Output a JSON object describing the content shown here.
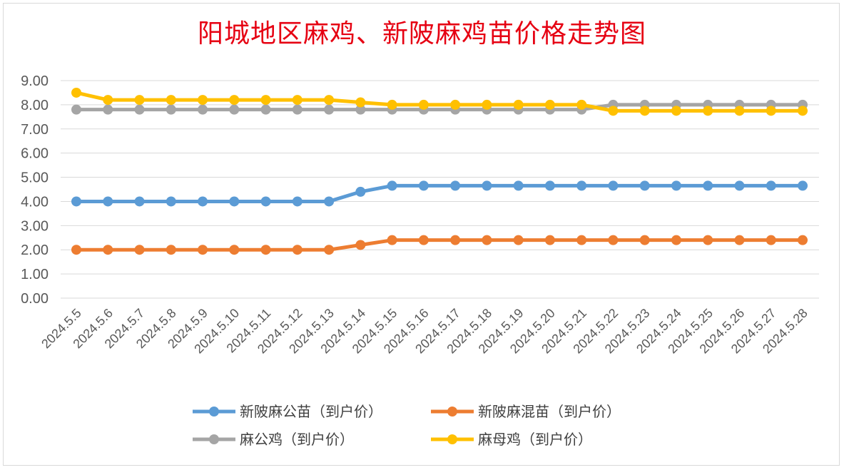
{
  "chart_data": {
    "type": "line",
    "title": "阳城地区麻鸡、新陂麻鸡苗价格走势图",
    "xlabel": "",
    "ylabel": "",
    "ylim": [
      0,
      9
    ],
    "yticks": [
      "0.00",
      "1.00",
      "2.00",
      "3.00",
      "4.00",
      "5.00",
      "6.00",
      "7.00",
      "8.00",
      "9.00"
    ],
    "grid": true,
    "legend_position": "bottom",
    "categories": [
      "2024.5.5",
      "2024.5.6",
      "2024.5.7",
      "2024.5.8",
      "2024.5.9",
      "2024.5.10",
      "2024.5.11",
      "2024.5.12",
      "2024.5.13",
      "2024.5.14",
      "2024.5.15",
      "2024.5.16",
      "2024.5.17",
      "2024.5.18",
      "2024.5.19",
      "2024.5.20",
      "2024.5.21",
      "2024.5.22",
      "2024.5.23",
      "2024.5.24",
      "2024.5.25",
      "2024.5.26",
      "2024.5.27",
      "2024.5.28"
    ],
    "series": [
      {
        "name": "新陂麻公苗（到户价）",
        "color": "#5b9bd5",
        "values": [
          4.0,
          4.0,
          4.0,
          4.0,
          4.0,
          4.0,
          4.0,
          4.0,
          4.0,
          4.4,
          4.65,
          4.65,
          4.65,
          4.65,
          4.65,
          4.65,
          4.65,
          4.65,
          4.65,
          4.65,
          4.65,
          4.65,
          4.65,
          4.65
        ]
      },
      {
        "name": "新陂麻混苗（到户价）",
        "color": "#ed7d31",
        "values": [
          2.0,
          2.0,
          2.0,
          2.0,
          2.0,
          2.0,
          2.0,
          2.0,
          2.0,
          2.2,
          2.4,
          2.4,
          2.4,
          2.4,
          2.4,
          2.4,
          2.4,
          2.4,
          2.4,
          2.4,
          2.4,
          2.4,
          2.4,
          2.4
        ]
      },
      {
        "name": "麻公鸡（到户价）",
        "color": "#a5a5a5",
        "values": [
          7.8,
          7.8,
          7.8,
          7.8,
          7.8,
          7.8,
          7.8,
          7.8,
          7.8,
          7.8,
          7.8,
          7.8,
          7.8,
          7.8,
          7.8,
          7.8,
          7.8,
          8.0,
          8.0,
          8.0,
          8.0,
          8.0,
          8.0,
          8.0
        ]
      },
      {
        "name": "麻母鸡（到户价）",
        "color": "#ffc000",
        "values": [
          8.5,
          8.2,
          8.2,
          8.2,
          8.2,
          8.2,
          8.2,
          8.2,
          8.2,
          8.1,
          8.0,
          8.0,
          8.0,
          8.0,
          8.0,
          8.0,
          8.0,
          7.75,
          7.75,
          7.75,
          7.75,
          7.75,
          7.75,
          7.75
        ]
      }
    ]
  }
}
